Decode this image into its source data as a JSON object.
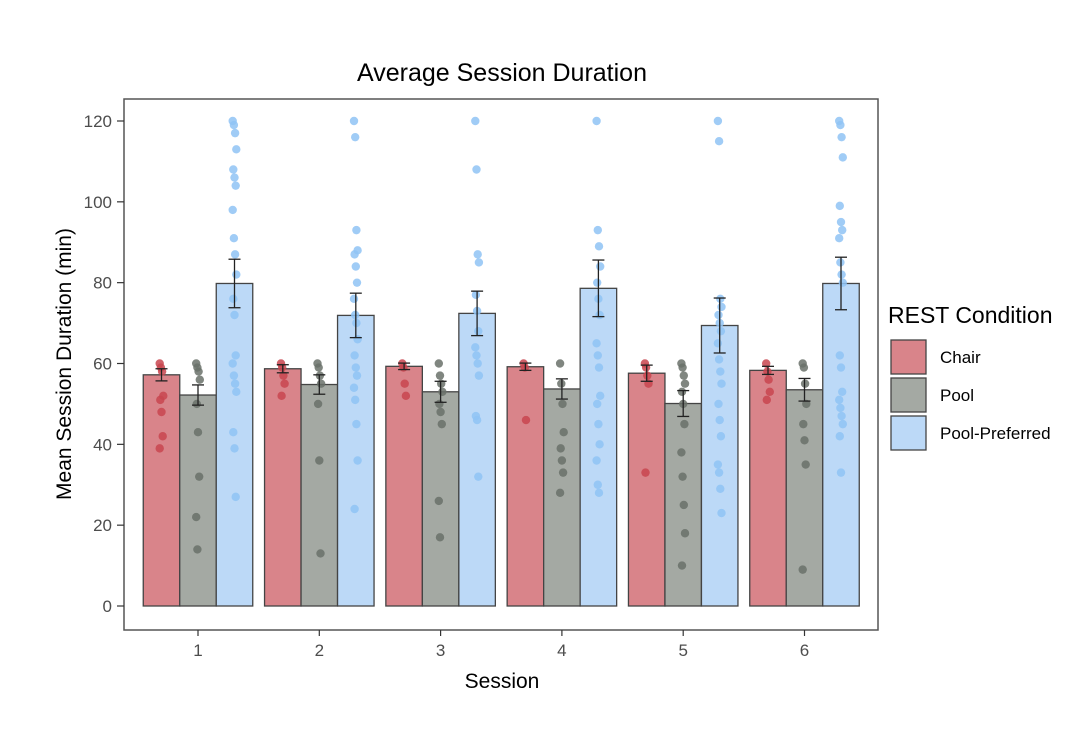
{
  "chart_data": {
    "type": "bar",
    "title": "Average Session Duration",
    "xlabel": "Session",
    "ylabel": "Mean Session Duration (min)",
    "categories": [
      "1",
      "2",
      "3",
      "4",
      "5",
      "6"
    ],
    "ylim": [
      -6,
      125
    ],
    "yticks": [
      0,
      20,
      40,
      60,
      80,
      100,
      120
    ],
    "ytick_labels": [
      "0",
      "20",
      "40",
      "60",
      "80",
      "100",
      "120"
    ],
    "grid": false,
    "legend": {
      "title": "REST Condition",
      "position": "right"
    },
    "series": [
      {
        "name": "Chair",
        "color": "#d9848a",
        "point_color": "#c8454f",
        "values": [
          57.2,
          58.7,
          59.3,
          59.2,
          57.6,
          58.3
        ],
        "error": [
          1.5,
          1.0,
          0.8,
          0.9,
          2.0,
          1.0
        ],
        "points": [
          [
            60,
            59,
            58,
            52,
            51,
            48,
            42,
            39
          ],
          [
            60,
            59,
            57,
            55,
            52
          ],
          [
            60,
            59,
            55,
            52
          ],
          [
            60,
            59,
            46
          ],
          [
            60,
            59,
            57,
            55,
            33
          ],
          [
            60,
            58,
            56,
            53,
            51
          ]
        ]
      },
      {
        "name": "Pool",
        "color": "#a4a9a3",
        "point_color": "#6a716a",
        "values": [
          52.2,
          54.8,
          53.0,
          53.7,
          50.1,
          53.5
        ],
        "error": [
          2.5,
          2.4,
          2.6,
          2.5,
          3.2,
          2.8
        ],
        "points": [
          [
            60,
            59,
            58,
            56,
            50,
            43,
            32,
            22,
            14
          ],
          [
            60,
            59,
            57,
            55,
            50,
            36,
            13
          ],
          [
            60,
            57,
            55,
            53,
            50,
            48,
            45,
            26,
            17
          ],
          [
            60,
            55,
            50,
            43,
            39,
            36,
            33,
            28
          ],
          [
            60,
            59,
            57,
            55,
            53,
            50,
            45,
            38,
            32,
            25,
            18,
            10
          ],
          [
            60,
            59,
            55,
            50,
            45,
            41,
            35,
            9
          ]
        ]
      },
      {
        "name": "Pool-Preferred",
        "color": "#bcd9f7",
        "point_color": "#8fc3f5",
        "values": [
          79.8,
          71.9,
          72.4,
          78.6,
          69.4,
          79.8
        ],
        "error": [
          6.0,
          5.5,
          5.5,
          7.0,
          6.8,
          6.5
        ],
        "points": [
          [
            120,
            119,
            117,
            113,
            108,
            106,
            104,
            98,
            91,
            87,
            82,
            76,
            72,
            62,
            60,
            57,
            55,
            53,
            43,
            39,
            27
          ],
          [
            120,
            116,
            93,
            88,
            87,
            84,
            80,
            76,
            72,
            70,
            66,
            62,
            59,
            57,
            54,
            51,
            45,
            36,
            24
          ],
          [
            120,
            108,
            87,
            85,
            77,
            73,
            68,
            64,
            62,
            60,
            57,
            47,
            46,
            32
          ],
          [
            120,
            93,
            89,
            84,
            80,
            76,
            72,
            65,
            62,
            59,
            52,
            50,
            45,
            40,
            36,
            30,
            28
          ],
          [
            120,
            115,
            76,
            74,
            72,
            70,
            68,
            65,
            61,
            58,
            55,
            50,
            46,
            42,
            35,
            33,
            29,
            23
          ],
          [
            120,
            119,
            116,
            111,
            99,
            95,
            93,
            91,
            85,
            82,
            80,
            62,
            59,
            53,
            51,
            49,
            47,
            45,
            42,
            33
          ]
        ]
      }
    ]
  }
}
